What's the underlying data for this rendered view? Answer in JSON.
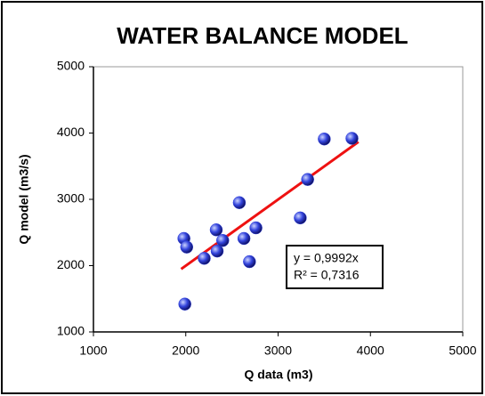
{
  "chart_data": {
    "type": "scatter",
    "title": "WATER BALANCE MODEL",
    "x_label": "Q data (m3)",
    "y_label": "Q  model (m3/s)",
    "x": [
      1980,
      2010,
      1990,
      2200,
      2330,
      2340,
      2400,
      2580,
      2630,
      2690,
      2760,
      3240,
      3320,
      3500,
      3800
    ],
    "values": [
      2410,
      2280,
      1420,
      2110,
      2540,
      2220,
      2380,
      2950,
      2410,
      2060,
      2570,
      2720,
      3300,
      3910,
      3920
    ],
    "color": "#3344dd",
    "trendline": {
      "slope": 0.9992,
      "x": [
        1950,
        3870
      ],
      "color": "#ee1111"
    },
    "annotations": [
      "y = 0,9992x",
      "R² = 0,7316"
    ],
    "xlim": [
      1000,
      5000
    ],
    "xticks": [
      1000,
      2000,
      3000,
      4000,
      5000
    ],
    "ylim": [
      1000,
      5000
    ],
    "yticks": [
      1000,
      2000,
      3000,
      4000,
      5000
    ],
    "grid": false
  }
}
